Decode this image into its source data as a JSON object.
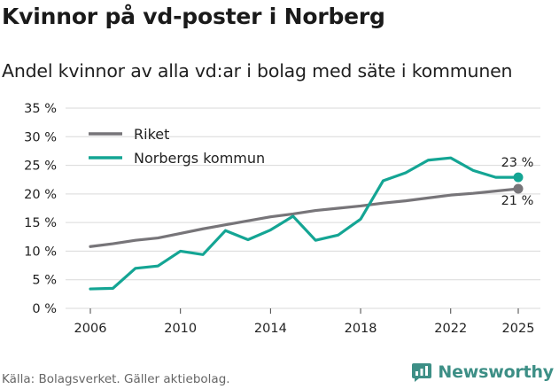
{
  "header": {
    "title": "Kvinnor på vd-poster i Norberg",
    "subtitle": "Andel kvinnor av alla vd:ar i bolag med säte i kommunen"
  },
  "footer": {
    "source": "Källa: Bolagsverket. Gäller aktiebolag.",
    "brand": "Newsworthy"
  },
  "colors": {
    "riket": "#777579",
    "norberg": "#14a594",
    "grid": "#d9d9d9",
    "brand": "#3d8f86"
  },
  "chart_data": {
    "type": "line",
    "title": "Kvinnor på vd-poster i Norberg",
    "subtitle": "Andel kvinnor av alla vd:ar i bolag med säte i kommunen",
    "xlabel": "",
    "ylabel": "",
    "x": [
      2006,
      2007,
      2008,
      2009,
      2010,
      2011,
      2012,
      2013,
      2014,
      2015,
      2016,
      2017,
      2018,
      2019,
      2020,
      2021,
      2022,
      2023,
      2024,
      2025
    ],
    "xticks": [
      2006,
      2010,
      2014,
      2018,
      2022,
      2025
    ],
    "xtick_labels": [
      "2006",
      "2010",
      "2014",
      "2018",
      "2022",
      "2025"
    ],
    "xlim": [
      2006,
      2025
    ],
    "ylim": [
      0,
      35
    ],
    "yticks": [
      0,
      5,
      10,
      15,
      20,
      25,
      30,
      35
    ],
    "ytick_labels": [
      "0 %",
      "5 %",
      "10 %",
      "15 %",
      "20 %",
      "25 %",
      "30 %",
      "35 %"
    ],
    "grid": true,
    "legend_position": "top-left",
    "series": [
      {
        "name": "Riket",
        "color": "#777579",
        "values": [
          10.8,
          11.3,
          11.9,
          12.3,
          13.1,
          13.9,
          14.6,
          15.3,
          16.0,
          16.5,
          17.1,
          17.5,
          17.9,
          18.4,
          18.8,
          19.3,
          19.8,
          20.1,
          20.5,
          20.9
        ],
        "end_label": "21 %"
      },
      {
        "name": "Norbergs kommun",
        "color": "#14a594",
        "values": [
          3.4,
          3.5,
          7.0,
          7.4,
          10.0,
          9.4,
          13.6,
          12.0,
          13.7,
          16.1,
          11.9,
          12.8,
          15.6,
          22.3,
          23.7,
          25.9,
          26.3,
          24.1,
          22.9,
          22.9
        ],
        "end_label": "23 %"
      }
    ]
  }
}
